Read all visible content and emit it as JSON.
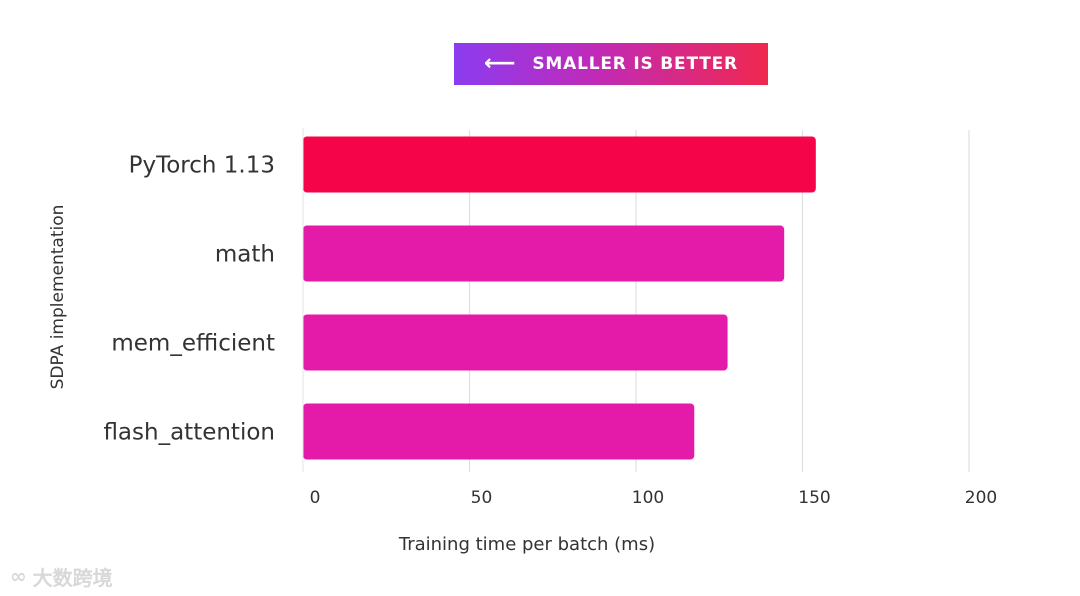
{
  "banner": {
    "arrow": "⟵",
    "text": "SMALLER IS BETTER"
  },
  "watermark": {
    "text": "大数跨境",
    "icon": "ribbon-logo-icon"
  },
  "colors": {
    "pytorch_bar": "#f5044a",
    "sdpa_bar": "#e31ba8",
    "grid": "#dcdfe3",
    "text": "#333333"
  },
  "chart_data": {
    "type": "bar",
    "orientation": "horizontal",
    "title": "",
    "xlabel": "Training time per batch (ms)",
    "ylabel": "SDPA implementation",
    "xlim": [
      0,
      200
    ],
    "xticks": [
      0,
      50,
      100,
      150,
      200
    ],
    "grid": true,
    "categories": [
      "PyTorch 1.13",
      "math",
      "mem_efficient",
      "flash_attention"
    ],
    "values": [
      154,
      144.5,
      127.5,
      117.5
    ],
    "bar_colors": [
      "#f5044a",
      "#e31ba8",
      "#e31ba8",
      "#e31ba8"
    ]
  }
}
